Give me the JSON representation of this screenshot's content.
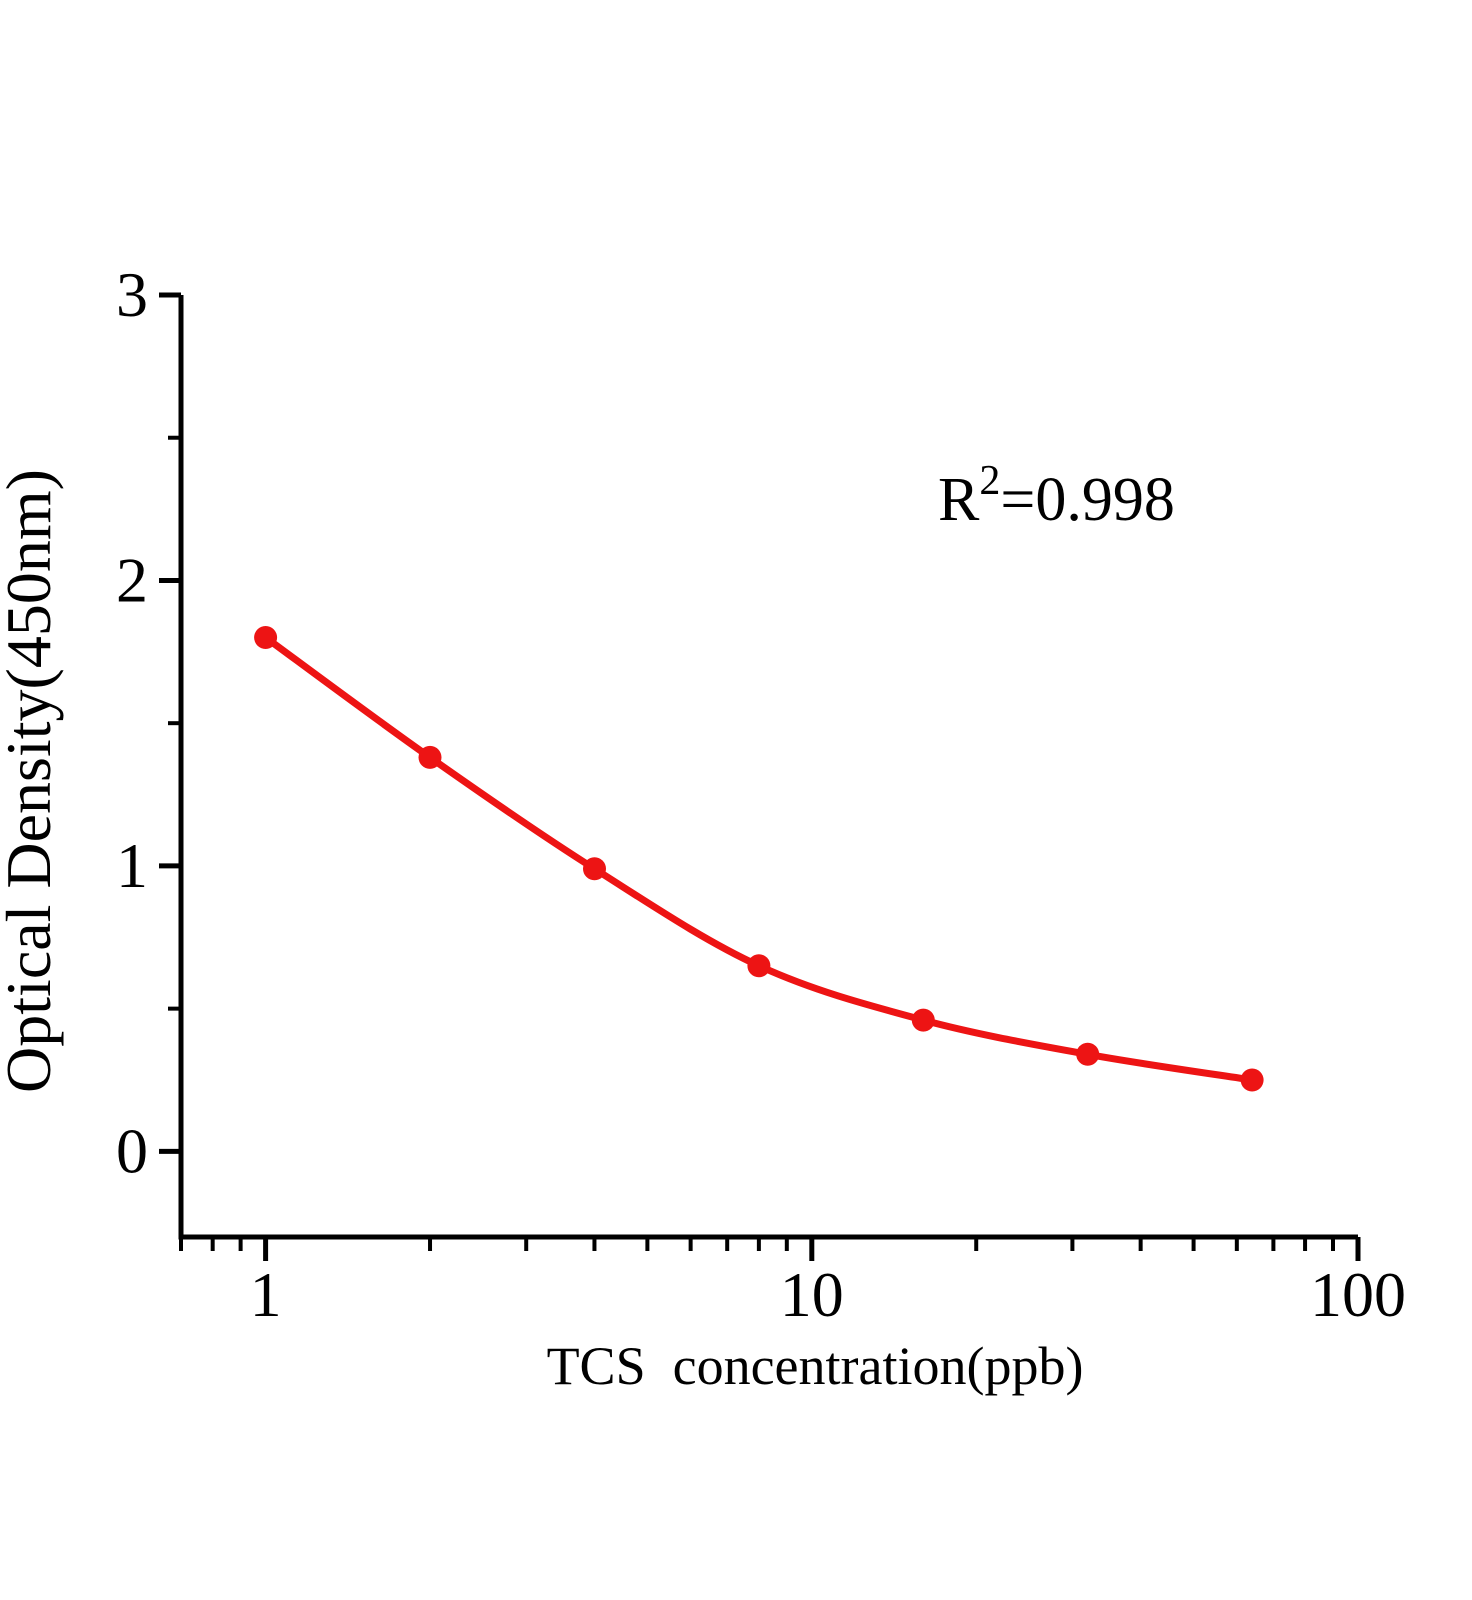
{
  "chart_data": {
    "type": "scatter",
    "title": "",
    "xlabel": "TCS  concentration(ppb)",
    "ylabel": "Optical Density(450nm)",
    "xscale": "log",
    "xlim": [
      0.7,
      100
    ],
    "ylim": [
      -0.3,
      3
    ],
    "grid": false,
    "legend": "none",
    "x": [
      1,
      2,
      4,
      8,
      16,
      32,
      64
    ],
    "y": [
      1.8,
      1.38,
      0.99,
      0.65,
      0.46,
      0.34,
      0.25
    ],
    "x_major_ticks": [
      1,
      10,
      100
    ],
    "x_tick_labels": [
      "1",
      "10",
      "100"
    ],
    "x_minor_ticks": [
      0.7,
      0.8,
      0.9,
      2,
      3,
      4,
      5,
      6,
      7,
      8,
      9,
      20,
      30,
      40,
      50,
      60,
      70,
      80,
      90
    ],
    "y_major_ticks": [
      0,
      1,
      2,
      3
    ],
    "y_tick_labels": [
      "0",
      "1",
      "2",
      "3"
    ],
    "y_minor_ticks": [
      0.5,
      1.5,
      2.5
    ],
    "annotation": {
      "base": "R",
      "superscript": "2",
      "text": "=0.998",
      "r_squared_value": 0.998
    },
    "colors": {
      "series": "#ED1414",
      "axis": "#000000",
      "background": "#FFFFFF"
    }
  }
}
